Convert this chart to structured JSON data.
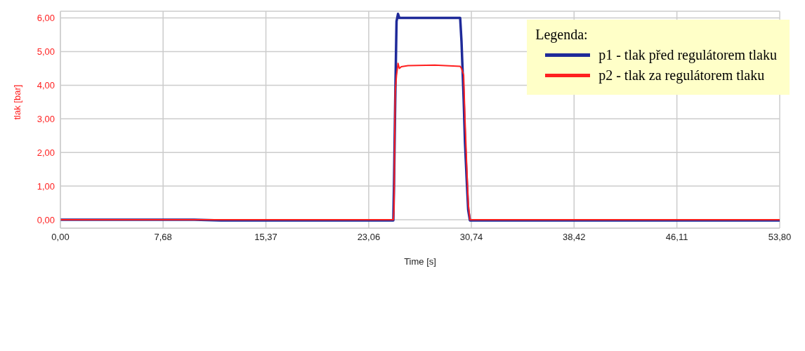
{
  "chart_data": {
    "type": "line",
    "xlabel": "Time [s]",
    "ylabel": "tlak [bar]",
    "legend_title": "Legenda:",
    "x": [
      0,
      10,
      12,
      20,
      24.9,
      24.95,
      25.04,
      25.14,
      25.25,
      25.35,
      25.5,
      26,
      28,
      29.9,
      30.0,
      30.16,
      30.26,
      30.4,
      30.5,
      30.63,
      31,
      40,
      53.8
    ],
    "series": [
      {
        "name": "p1 - tlak před regulátorem tlaku",
        "color": "#1f2a99",
        "values": [
          0,
          0,
          -0.02,
          -0.02,
          -0.02,
          1.0,
          3.5,
          5.9,
          6.12,
          6.0,
          6.0,
          6.0,
          6.0,
          6.0,
          5.3,
          3.6,
          2.3,
          1.1,
          0.3,
          -0.02,
          -0.02,
          -0.02,
          -0.02
        ]
      },
      {
        "name": "p2 - tlak za regulátorem tlaku",
        "color": "#ff2020",
        "values": [
          0,
          0,
          0,
          0,
          0,
          0.3,
          3.8,
          4.3,
          4.65,
          4.5,
          4.55,
          4.58,
          4.6,
          4.56,
          4.5,
          4.3,
          3.0,
          1.5,
          0.5,
          0,
          0,
          0,
          0
        ]
      }
    ],
    "xlim": [
      0,
      53.8
    ],
    "xticks": [
      {
        "value": 0,
        "label": "0,00"
      },
      {
        "value": 7.68,
        "label": "7,68"
      },
      {
        "value": 15.37,
        "label": "15,37"
      },
      {
        "value": 23.06,
        "label": "23,06"
      },
      {
        "value": 30.74,
        "label": "30,74"
      },
      {
        "value": 38.42,
        "label": "38,42"
      },
      {
        "value": 46.11,
        "label": "46,11"
      },
      {
        "value": 53.8,
        "label": "53,80"
      }
    ],
    "ylim": [
      -0.25,
      6.2
    ],
    "yticks": [
      {
        "value": 0,
        "label": "0,00"
      },
      {
        "value": 1,
        "label": "1,00"
      },
      {
        "value": 2,
        "label": "2,00"
      },
      {
        "value": 3,
        "label": "3,00"
      },
      {
        "value": 4,
        "label": "4,00"
      },
      {
        "value": 5,
        "label": "5,00"
      },
      {
        "value": 6,
        "label": "6,00"
      }
    ],
    "grid": true,
    "legend": "top right",
    "marker": "none",
    "line_style": "solid"
  }
}
